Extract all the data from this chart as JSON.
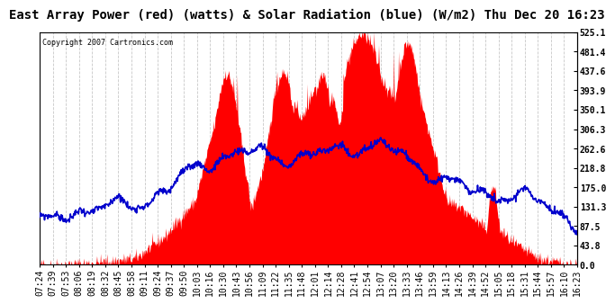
{
  "title": "East Array Power (red) (watts) & Solar Radiation (blue) (W/m2) Thu Dec 20 16:23",
  "copyright": "Copyright 2007 Cartronics.com",
  "ylabel_right_ticks": [
    0.0,
    43.8,
    87.5,
    131.3,
    175.0,
    218.8,
    262.6,
    306.3,
    350.1,
    393.9,
    437.6,
    481.4,
    525.1
  ],
  "ymax": 525.1,
  "ymin": 0.0,
  "background_color": "#ffffff",
  "plot_bg_color": "#ffffff",
  "grid_color": "#b0b0b0",
  "fill_color": "#ff0000",
  "line_color": "#0000cc",
  "title_fontsize": 10,
  "tick_fontsize": 7,
  "x_labels": [
    "07:24",
    "07:39",
    "07:53",
    "08:06",
    "08:19",
    "08:32",
    "08:45",
    "08:58",
    "09:11",
    "09:24",
    "09:37",
    "09:50",
    "10:03",
    "10:16",
    "10:30",
    "10:43",
    "10:56",
    "11:09",
    "11:22",
    "11:35",
    "11:48",
    "12:01",
    "12:14",
    "12:28",
    "12:41",
    "12:54",
    "13:07",
    "13:20",
    "13:33",
    "13:46",
    "13:59",
    "14:13",
    "14:26",
    "14:39",
    "14:52",
    "15:05",
    "15:18",
    "15:31",
    "15:44",
    "15:57",
    "16:10",
    "16:23"
  ]
}
